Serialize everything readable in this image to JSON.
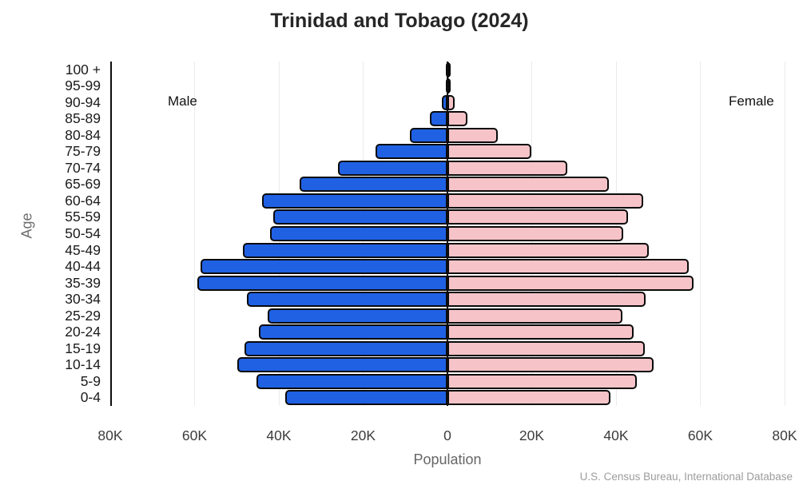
{
  "page": {
    "title": "Trinidad and Tobago (2024)"
  },
  "annotations": {
    "male": "Male",
    "female": "Female",
    "source": "U.S. Census Bureau, International Database"
  },
  "axes": {
    "x_title": "Population",
    "y_title": "Age"
  },
  "colors": {
    "male_bar": "#2061e4",
    "female_bar": "#f6c4c8",
    "bar_outline": "#0a0a0a",
    "gridline": "#ebebeb",
    "axis_line": "#0d0d0d",
    "title_text": "#262626",
    "tick_text": "#3c3c3c",
    "muted_text": "#666666",
    "source_text": "#9c9c9c"
  },
  "chart_data": {
    "type": "bar",
    "subtype": "population_pyramid",
    "title": "Trinidad and Tobago (2024)",
    "xlabel": "Population",
    "ylabel": "Age",
    "unit": "persons",
    "axis_max_each_side": 80000,
    "grid": true,
    "categories_top_to_bottom": [
      "100 +",
      "95-99",
      "90-94",
      "85-89",
      "80-84",
      "75-79",
      "70-74",
      "65-69",
      "60-64",
      "55-59",
      "50-54",
      "45-49",
      "40-44",
      "35-39",
      "30-34",
      "25-29",
      "20-24",
      "15-19",
      "10-14",
      "5-9",
      "0-4"
    ],
    "series": [
      {
        "name": "Male",
        "side": "left",
        "color": "#2061e4",
        "values": [
          100,
          300,
          1300,
          4200,
          9000,
          17100,
          25900,
          35000,
          44000,
          41400,
          42100,
          48500,
          58600,
          59300,
          47600,
          42600,
          44700,
          48200,
          49900,
          45300,
          38500
        ]
      },
      {
        "name": "Female",
        "side": "right",
        "color": "#f6c4c8",
        "values": [
          150,
          400,
          1800,
          4700,
          11900,
          19900,
          28500,
          38300,
          46500,
          42900,
          41700,
          47700,
          57300,
          58400,
          47000,
          41600,
          44100,
          46900,
          48900,
          44900,
          38700
        ]
      }
    ],
    "x_ticks": [
      {
        "label": "80K",
        "value": -80000
      },
      {
        "label": "60K",
        "value": -60000
      },
      {
        "label": "40K",
        "value": -40000
      },
      {
        "label": "20K",
        "value": -20000
      },
      {
        "label": "0",
        "value": 0
      },
      {
        "label": "20K",
        "value": 20000
      },
      {
        "label": "40K",
        "value": 40000
      },
      {
        "label": "60K",
        "value": 60000
      },
      {
        "label": "80K",
        "value": 80000
      }
    ]
  }
}
